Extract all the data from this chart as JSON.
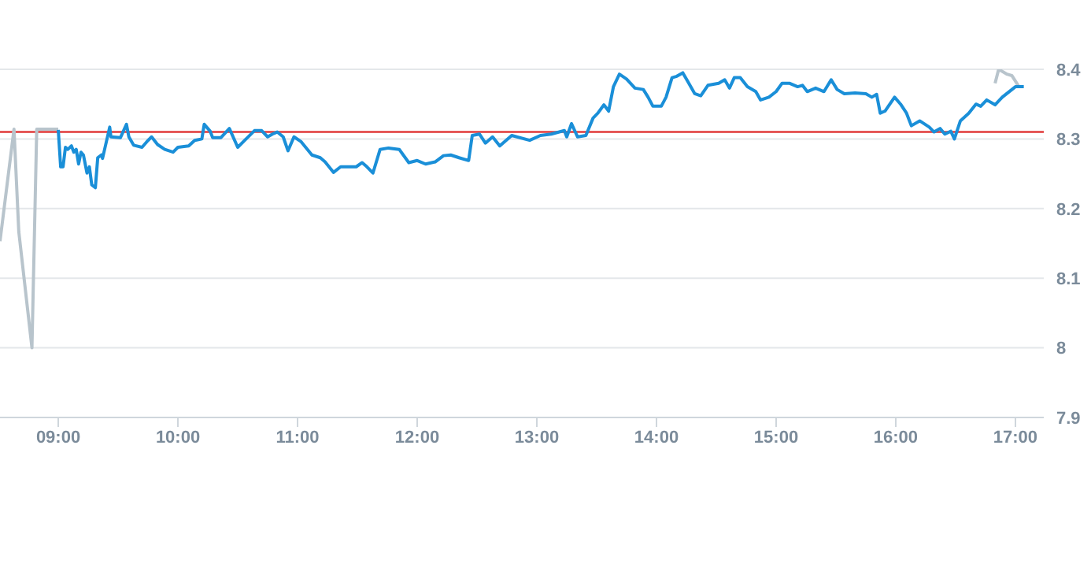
{
  "chart_data": {
    "type": "line",
    "xlim": [
      8.513,
      17.237
    ],
    "xticks": [
      {
        "value": 9,
        "label": "09:00"
      },
      {
        "value": 10,
        "label": "10:00"
      },
      {
        "value": 11,
        "label": "11:00"
      },
      {
        "value": 12,
        "label": "12:00"
      },
      {
        "value": 13,
        "label": "13:00"
      },
      {
        "value": 14,
        "label": "14:00"
      },
      {
        "value": 15,
        "label": "15:00"
      },
      {
        "value": 16,
        "label": "16:00"
      },
      {
        "value": 17,
        "label": "17:00"
      }
    ],
    "ylim": [
      7.9,
      8.4
    ],
    "yticks": [
      7.9,
      8,
      8.1,
      8.2,
      8.3,
      8.4
    ],
    "grid": "y",
    "marker": "none",
    "line_style": "solid",
    "ref_lines": [
      {
        "axis": "y",
        "value": 8.31,
        "color": "#e03a3a"
      }
    ],
    "series": [
      {
        "color": "#b8c4cc",
        "x": [
          8.513,
          8.63,
          8.67,
          8.78,
          8.82,
          9.0
        ],
        "values": [
          8.153,
          8.314,
          8.167,
          8.0,
          8.314,
          8.314
        ]
      },
      {
        "color": "#b8c4cc",
        "x": [
          16.83,
          16.86,
          16.93,
          16.97,
          17.03
        ],
        "values": [
          8.38,
          8.4,
          8.393,
          8.391,
          8.375
        ]
      },
      {
        "color": "#1a8fd8",
        "x": [
          9.0,
          9.02,
          9.04,
          9.06,
          9.08,
          9.11,
          9.13,
          9.15,
          9.17,
          9.19,
          9.21,
          9.24,
          9.26,
          9.28,
          9.31,
          9.33,
          9.36,
          9.37,
          9.43,
          9.44,
          9.52,
          9.57,
          9.59,
          9.63,
          9.7,
          9.74,
          9.78,
          9.83,
          9.89,
          9.96,
          10.0,
          10.09,
          10.14,
          10.2,
          10.22,
          10.27,
          10.29,
          10.36,
          10.43,
          10.5,
          10.57,
          10.64,
          10.7,
          10.75,
          10.79,
          10.83,
          10.88,
          10.92,
          10.97,
          11.03,
          11.12,
          11.19,
          11.23,
          11.3,
          11.36,
          11.49,
          11.54,
          11.58,
          11.63,
          11.69,
          11.76,
          11.85,
          11.93,
          12.0,
          12.07,
          12.15,
          12.22,
          12.28,
          12.35,
          12.43,
          12.46,
          12.52,
          12.57,
          12.63,
          12.69,
          12.79,
          12.94,
          13.03,
          13.12,
          13.23,
          13.25,
          13.29,
          13.34,
          13.41,
          13.47,
          13.51,
          13.56,
          13.6,
          13.64,
          13.69,
          13.75,
          13.82,
          13.89,
          13.93,
          13.97,
          14.04,
          14.08,
          14.13,
          14.17,
          14.22,
          14.26,
          14.32,
          14.37,
          14.43,
          14.52,
          14.57,
          14.61,
          14.65,
          14.7,
          14.76,
          14.83,
          14.87,
          14.94,
          15.0,
          15.05,
          15.11,
          15.18,
          15.22,
          15.26,
          15.33,
          15.4,
          15.46,
          15.51,
          15.57,
          15.66,
          15.75,
          15.8,
          15.84,
          15.87,
          15.91,
          15.99,
          16.04,
          16.09,
          16.13,
          16.2,
          16.28,
          16.32,
          16.37,
          16.41,
          16.46,
          16.49,
          16.54,
          16.61,
          16.67,
          16.71,
          16.76,
          16.83,
          16.89,
          17.0,
          17.07
        ],
        "values": [
          8.313,
          8.26,
          8.26,
          8.288,
          8.285,
          8.29,
          8.281,
          8.285,
          8.264,
          8.281,
          8.277,
          8.251,
          8.26,
          8.234,
          8.23,
          8.273,
          8.277,
          8.272,
          8.317,
          8.303,
          8.302,
          8.321,
          8.303,
          8.291,
          8.288,
          8.296,
          8.303,
          8.292,
          8.285,
          8.281,
          8.288,
          8.29,
          8.298,
          8.3,
          8.321,
          8.311,
          8.302,
          8.302,
          8.315,
          8.288,
          8.3,
          8.312,
          8.312,
          8.303,
          8.307,
          8.31,
          8.303,
          8.283,
          8.303,
          8.296,
          8.277,
          8.273,
          8.267,
          8.252,
          8.26,
          8.26,
          8.266,
          8.26,
          8.251,
          8.285,
          8.287,
          8.285,
          8.266,
          8.269,
          8.264,
          8.267,
          8.276,
          8.277,
          8.273,
          8.269,
          8.305,
          8.307,
          8.294,
          8.303,
          8.29,
          8.305,
          8.298,
          8.305,
          8.307,
          8.312,
          8.303,
          8.322,
          8.303,
          8.305,
          8.33,
          8.337,
          8.349,
          8.34,
          8.375,
          8.393,
          8.386,
          8.373,
          8.371,
          8.36,
          8.347,
          8.347,
          8.36,
          8.388,
          8.39,
          8.395,
          8.383,
          8.365,
          8.362,
          8.377,
          8.38,
          8.385,
          8.373,
          8.388,
          8.388,
          8.375,
          8.368,
          8.356,
          8.36,
          8.368,
          8.38,
          8.38,
          8.375,
          8.377,
          8.368,
          8.373,
          8.368,
          8.385,
          8.371,
          8.365,
          8.366,
          8.365,
          8.36,
          8.364,
          8.337,
          8.34,
          8.36,
          8.35,
          8.337,
          8.319,
          8.326,
          8.317,
          8.31,
          8.315,
          8.307,
          8.311,
          8.3,
          8.326,
          8.337,
          8.35,
          8.347,
          8.356,
          8.349,
          8.36,
          8.375,
          8.375
        ]
      }
    ]
  }
}
